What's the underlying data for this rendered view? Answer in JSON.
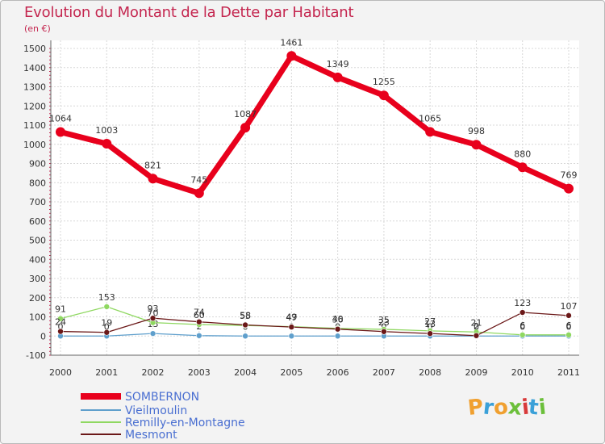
{
  "title": "Evolution du Montant de la Dette par Habitant",
  "unit": "(en €)",
  "logo_text": "Proxiti",
  "chart_data": {
    "type": "line",
    "title": "Evolution du Montant de la Dette par Habitant",
    "subtitle": "(en €)",
    "xlabel": "",
    "ylabel": "",
    "categories": [
      "2000",
      "2001",
      "2002",
      "2003",
      "2004",
      "2005",
      "2006",
      "2007",
      "2008",
      "2009",
      "2010",
      "2011"
    ],
    "yticks": [
      -100,
      0,
      100,
      200,
      300,
      400,
      500,
      600,
      700,
      800,
      900,
      1000,
      1100,
      1200,
      1300,
      1400,
      1500
    ],
    "ylim": [
      -100,
      1500
    ],
    "grid": true,
    "legend_position": "bottom-left",
    "series": [
      {
        "name": "SOMBERNON",
        "color": "#e8001c",
        "values": [
          1064,
          1003,
          821,
          745,
          1087,
          1461,
          1349,
          1255,
          1065,
          998,
          880,
          769
        ],
        "labels": [
          "1064",
          "1003",
          "821",
          "745",
          "1087",
          "1461",
          "1349",
          "1255",
          "1065",
          "998",
          "880",
          "769"
        ]
      },
      {
        "name": "Vieilmoulin",
        "color": "#5f9fcc",
        "values": [
          0,
          0,
          13,
          2,
          0,
          0,
          0,
          0,
          0,
          0,
          0,
          0
        ],
        "labels": [
          "0",
          "0",
          "13",
          "2",
          "0",
          "0",
          "0",
          "0",
          "0",
          "0",
          "0",
          "0"
        ]
      },
      {
        "name": "Remilly-en-Montagne",
        "color": "#8fd861",
        "values": [
          91,
          153,
          70,
          60,
          55,
          49,
          40,
          35,
          27,
          21,
          6,
          6
        ],
        "labels": [
          "91",
          "153",
          "70",
          "60",
          "55",
          "49",
          "40",
          "35",
          "27",
          "21",
          "6",
          "6"
        ]
      },
      {
        "name": "Mesmont",
        "color": "#6b1818",
        "values": [
          24,
          19,
          93,
          74,
          58,
          47,
          36,
          23,
          13,
          2,
          123,
          107
        ],
        "labels": [
          "24",
          "19",
          "93",
          "74",
          "58",
          "47",
          "36",
          "23",
          "13",
          "2",
          "123",
          "107"
        ]
      }
    ]
  }
}
